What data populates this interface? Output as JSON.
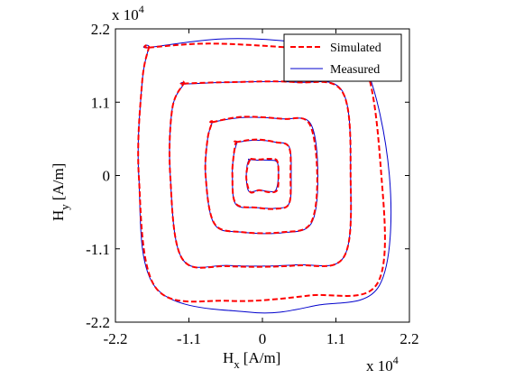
{
  "chart_data": {
    "type": "line",
    "xlabel": "H",
    "xlabel_sub": "x",
    "xlabel_unit": "[A/m]",
    "ylabel": "H",
    "ylabel_sub": "y",
    "ylabel_unit": "[A/m]",
    "x_multiplier": "x 10",
    "x_multiplier_exp": "4",
    "y_multiplier": "x 10",
    "y_multiplier_exp": "4",
    "xlim": [
      -2.2,
      2.2
    ],
    "ylim": [
      -2.2,
      2.2
    ],
    "xticks": [
      -2.2,
      -1.1,
      0,
      1.1,
      2.2
    ],
    "yticks": [
      -2.2,
      -1.1,
      0,
      1.1,
      2.2
    ],
    "xtick_labels": [
      "-2.2",
      "-1.1",
      "0",
      "1.1",
      "2.2"
    ],
    "ytick_labels": [
      "-2.2",
      "-1.1",
      "0",
      "1.1",
      "2.2"
    ],
    "grid": false,
    "legend_position": "top-right",
    "series": [
      {
        "name": "Simulated",
        "color": "#ff0000",
        "style": "dashed",
        "loops": [
          {
            "x": [
              -0.18,
              -0.05,
              0.1,
              0.22,
              0.24,
              0.22,
              0.1,
              -0.05,
              -0.18,
              -0.24,
              -0.22,
              -0.18
            ],
            "y": [
              0.25,
              0.24,
              0.25,
              0.22,
              0.0,
              -0.22,
              -0.25,
              -0.22,
              -0.25,
              -0.05,
              0.15,
              0.25
            ]
          },
          {
            "x": [
              -0.4,
              -0.1,
              0.2,
              0.4,
              0.42,
              0.4,
              0.2,
              -0.1,
              -0.4,
              -0.45,
              -0.43,
              -0.4
            ],
            "y": [
              0.5,
              0.54,
              0.5,
              0.42,
              0.0,
              -0.42,
              -0.5,
              -0.48,
              -0.42,
              0.0,
              0.3,
              0.5
            ]
          },
          {
            "x": [
              -0.75,
              -0.3,
              0.3,
              0.7,
              0.82,
              0.72,
              0.3,
              -0.3,
              -0.72,
              -0.85,
              -0.82,
              -0.75
            ],
            "y": [
              0.8,
              0.88,
              0.85,
              0.78,
              0.0,
              -0.72,
              -0.85,
              -0.85,
              -0.72,
              0.0,
              0.55,
              0.8
            ]
          },
          {
            "x": [
              -1.18,
              -0.5,
              0.5,
              1.2,
              1.32,
              1.22,
              0.5,
              -0.5,
              -1.2,
              -1.38,
              -1.35,
              -1.18
            ],
            "y": [
              1.38,
              1.4,
              1.4,
              1.25,
              0.0,
              -1.22,
              -1.35,
              -1.36,
              -1.25,
              0.0,
              1.0,
              1.38
            ]
          },
          {
            "x": [
              -1.7,
              -0.8,
              0.4,
              1.45,
              1.78,
              1.72,
              0.7,
              -0.5,
              -1.6,
              -1.85,
              -1.8,
              -1.7
            ],
            "y": [
              1.92,
              1.98,
              1.92,
              1.82,
              0.0,
              -1.62,
              -1.8,
              -1.88,
              -1.68,
              0.0,
              1.4,
              1.92
            ]
          }
        ]
      },
      {
        "name": "Measured",
        "color": "#0000cc",
        "style": "solid",
        "loops": [
          {
            "x": [
              -0.2,
              -0.05,
              0.1,
              0.22,
              0.24,
              0.2,
              0.1,
              -0.05,
              -0.2,
              -0.24,
              -0.23,
              -0.2
            ],
            "y": [
              0.24,
              0.23,
              0.23,
              0.2,
              0.0,
              -0.22,
              -0.24,
              -0.22,
              -0.24,
              -0.05,
              0.15,
              0.24
            ]
          },
          {
            "x": [
              -0.38,
              -0.1,
              0.2,
              0.4,
              0.43,
              0.4,
              0.2,
              -0.1,
              -0.4,
              -0.45,
              -0.43,
              -0.38
            ],
            "y": [
              0.5,
              0.53,
              0.5,
              0.43,
              0.0,
              -0.42,
              -0.49,
              -0.48,
              -0.43,
              0.0,
              0.3,
              0.5
            ]
          },
          {
            "x": [
              -0.75,
              -0.3,
              0.3,
              0.72,
              0.83,
              0.73,
              0.3,
              -0.3,
              -0.72,
              -0.85,
              -0.82,
              -0.75
            ],
            "y": [
              0.8,
              0.87,
              0.85,
              0.78,
              0.0,
              -0.72,
              -0.86,
              -0.85,
              -0.73,
              0.0,
              0.55,
              0.8
            ]
          },
          {
            "x": [
              -1.18,
              -0.5,
              0.5,
              1.2,
              1.32,
              1.22,
              0.5,
              -0.5,
              -1.2,
              -1.38,
              -1.35,
              -1.18
            ],
            "y": [
              1.37,
              1.4,
              1.4,
              1.26,
              0.0,
              -1.22,
              -1.34,
              -1.35,
              -1.25,
              0.0,
              1.0,
              1.37
            ]
          },
          {
            "x": [
              -1.7,
              -0.6,
              0.5,
              1.45,
              1.9,
              1.75,
              0.8,
              -0.2,
              -1.6,
              -1.85,
              -1.8,
              -1.7
            ],
            "y": [
              1.92,
              2.05,
              2.0,
              1.8,
              0.0,
              -1.65,
              -1.95,
              -2.05,
              -1.68,
              0.0,
              1.4,
              1.92
            ]
          }
        ]
      }
    ]
  }
}
